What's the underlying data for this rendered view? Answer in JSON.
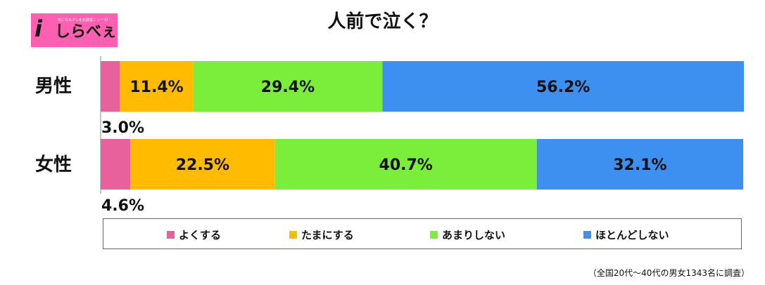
{
  "logo": {
    "tagline": "気になるアレをお調査ニュース!",
    "mark": "i",
    "word": "しらべぇ"
  },
  "note": "（全国20代～40代の男女1343名に調査）",
  "colors": {
    "よくする": "#e8609c",
    "たまにする": "#ffbb00",
    "あまりしない": "#7bee3c",
    "ほとんどしない": "#3d8ff0"
  },
  "chart_data": {
    "type": "bar",
    "orientation": "horizontal",
    "stacked": true,
    "normalized": true,
    "title": "人前で泣く？",
    "categories": [
      "男性",
      "女性"
    ],
    "series": [
      {
        "name": "よくする",
        "values": [
          3.0,
          4.6
        ],
        "labels": [
          "3.0%",
          "4.6%"
        ]
      },
      {
        "name": "たまにする",
        "values": [
          11.4,
          22.5
        ],
        "labels": [
          "11.4%",
          "22.5%"
        ]
      },
      {
        "name": "あまりしない",
        "values": [
          29.4,
          40.7
        ],
        "labels": [
          "29.4%",
          "40.7%"
        ]
      },
      {
        "name": "ほとんどしない",
        "values": [
          56.2,
          32.1
        ],
        "labels": [
          "56.2%",
          "32.1%"
        ]
      }
    ],
    "xlim": [
      0,
      100
    ],
    "legend": "bottom",
    "grid": false
  }
}
